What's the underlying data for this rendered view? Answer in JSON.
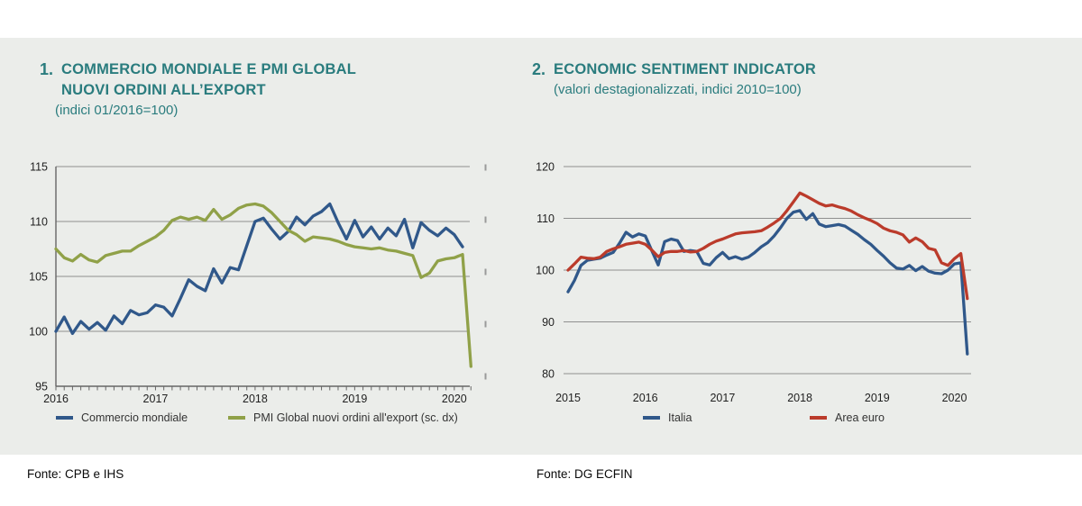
{
  "page": {
    "background": "#ffffff",
    "panel_background": "#ebedea",
    "title_color": "#2a7c7e",
    "gridline_color": "#8f8f8f",
    "axis_color": "#666666"
  },
  "figures": [
    {
      "number": "1.",
      "title_lines": [
        "COMMERCIO MONDIALE E PMI GLOBAL",
        "NUOVI ORDINI ALL’EXPORT"
      ],
      "subtitle": "(indici 01/2016=100)",
      "source": "Fonte: CPB e IHS"
    },
    {
      "number": "2.",
      "title_lines": [
        "ECONOMIC SENTIMENT INDICATOR"
      ],
      "subtitle": "(valori destagionalizzati, indici 2010=100)",
      "source": "Fonte: DG ECFIN"
    }
  ],
  "chart_data": [
    {
      "type": "line",
      "title": "Commercio mondiale e PMI Global nuovi ordini all'export",
      "subtitle": "(indici 01/2016=100)",
      "x_unit": "month",
      "x_start": "2016-01",
      "x_tick_labels": [
        "2016",
        "2017",
        "2018",
        "2019",
        "2020"
      ],
      "ylim": [
        95,
        115
      ],
      "yticks": [
        115,
        110,
        105,
        100,
        95
      ],
      "grid": true,
      "legend_position": "bottom",
      "note": "PMI series is plotted on a right-hand axis (sc. dx) whose labels are cropped out of the image; its values below are given in left-axis plot units.",
      "series": [
        {
          "name": "Commercio mondiale",
          "color": "#30588a",
          "axis": "left",
          "values": [
            100.0,
            101.3,
            99.8,
            100.9,
            100.2,
            100.8,
            100.1,
            101.4,
            100.7,
            101.9,
            101.5,
            101.7,
            102.4,
            102.2,
            101.4,
            103.0,
            104.7,
            104.1,
            103.7,
            105.7,
            104.4,
            105.8,
            105.6,
            107.8,
            110.0,
            110.3,
            109.3,
            108.4,
            109.1,
            110.4,
            109.7,
            110.5,
            110.9,
            111.6,
            109.9,
            108.4,
            110.1,
            108.6,
            109.5,
            108.4,
            109.4,
            108.7,
            110.2,
            107.6,
            109.9,
            109.2,
            108.7,
            109.4,
            108.8,
            107.7
          ]
        },
        {
          "name": "PMI Global nuovi ordini all'export (sc. dx)",
          "color": "#90a148",
          "axis": "right",
          "values": [
            107.5,
            106.7,
            106.4,
            107.0,
            106.5,
            106.3,
            106.9,
            107.1,
            107.3,
            107.3,
            107.8,
            108.2,
            108.6,
            109.2,
            110.1,
            110.4,
            110.2,
            110.4,
            110.1,
            111.1,
            110.2,
            110.6,
            111.2,
            111.5,
            111.6,
            111.4,
            110.8,
            110.0,
            109.2,
            108.8,
            108.2,
            108.6,
            108.5,
            108.4,
            108.2,
            107.9,
            107.7,
            107.6,
            107.5,
            107.6,
            107.4,
            107.3,
            107.1,
            106.9,
            104.9,
            105.3,
            106.4,
            106.6,
            106.7,
            107.0,
            96.8
          ]
        }
      ]
    },
    {
      "type": "line",
      "title": "Economic Sentiment Indicator",
      "subtitle": "(valori destagionalizzati, indici 2010=100)",
      "x_unit": "month",
      "x_start": "2015-01",
      "x_tick_labels": [
        "2015",
        "2016",
        "2017",
        "2018",
        "2019",
        "2020"
      ],
      "ylim": [
        80,
        120
      ],
      "yticks": [
        120,
        110,
        100,
        90,
        80
      ],
      "grid": true,
      "legend_position": "bottom",
      "series": [
        {
          "name": "Italia",
          "color": "#30588a",
          "axis": "left",
          "values": [
            95.8,
            98.0,
            100.9,
            101.9,
            102.1,
            102.3,
            102.9,
            103.4,
            105.2,
            107.3,
            106.4,
            107.0,
            106.6,
            103.8,
            101.0,
            105.5,
            106.0,
            105.7,
            103.6,
            103.8,
            103.6,
            101.3,
            101.0,
            102.4,
            103.4,
            102.2,
            102.6,
            102.1,
            102.5,
            103.4,
            104.5,
            105.3,
            106.6,
            108.2,
            110.0,
            111.2,
            111.5,
            109.8,
            110.9,
            108.9,
            108.4,
            108.6,
            108.8,
            108.5,
            107.7,
            106.9,
            105.9,
            105.0,
            103.8,
            102.7,
            101.4,
            100.4,
            100.2,
            100.9,
            99.9,
            100.7,
            99.8,
            99.4,
            99.3,
            100.0,
            101.2,
            101.4,
            83.8
          ]
        },
        {
          "name": "Area euro",
          "color": "#bb3b2b",
          "axis": "left",
          "values": [
            100.0,
            101.2,
            102.5,
            102.3,
            102.2,
            102.5,
            103.6,
            104.1,
            104.5,
            105.0,
            105.2,
            105.4,
            105.0,
            103.9,
            102.6,
            103.4,
            103.6,
            103.6,
            103.8,
            103.5,
            103.6,
            104.2,
            105.0,
            105.6,
            106.0,
            106.5,
            107.0,
            107.2,
            107.3,
            107.4,
            107.6,
            108.3,
            109.1,
            110.0,
            111.5,
            113.2,
            114.9,
            114.3,
            113.6,
            112.9,
            112.4,
            112.6,
            112.2,
            111.9,
            111.4,
            110.7,
            110.1,
            109.6,
            109.0,
            108.1,
            107.6,
            107.3,
            106.8,
            105.4,
            106.2,
            105.5,
            104.2,
            103.9,
            101.4,
            100.9,
            102.2,
            103.2,
            94.5
          ]
        }
      ]
    }
  ]
}
